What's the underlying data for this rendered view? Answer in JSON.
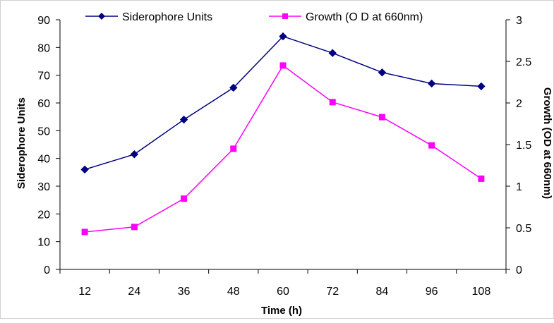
{
  "chart_data": {
    "type": "line",
    "x": [
      12,
      24,
      36,
      48,
      60,
      72,
      84,
      96,
      108
    ],
    "xlabel": "Time (h)",
    "ylabel": "Siderophore Units",
    "y2label": "Growth (OD at 660nm)",
    "ylim": [
      0,
      90
    ],
    "y2lim": [
      0,
      3
    ],
    "yticks": [
      "0",
      "10",
      "20",
      "30",
      "40",
      "50",
      "60",
      "70",
      "80",
      "90"
    ],
    "y2ticks": [
      "0",
      "0.5",
      "1",
      "1.5",
      "2",
      "2.5",
      "3"
    ],
    "xticks": [
      "12",
      "24",
      "36",
      "48",
      "60",
      "72",
      "84",
      "96",
      "108"
    ],
    "grid": false,
    "legend": "top",
    "series": [
      {
        "name": "Siderophore Units",
        "axis": "left",
        "color": "#000080",
        "marker": "diamond",
        "values": [
          36,
          41.5,
          54,
          65.5,
          84,
          78,
          71,
          67,
          66
        ]
      },
      {
        "name": "Growth (O D at 660nm)",
        "axis": "right",
        "color": "#ff00ff",
        "marker": "square",
        "values": [
          0.45,
          0.51,
          0.85,
          1.45,
          2.45,
          2.01,
          1.83,
          1.49,
          1.09
        ]
      }
    ]
  }
}
